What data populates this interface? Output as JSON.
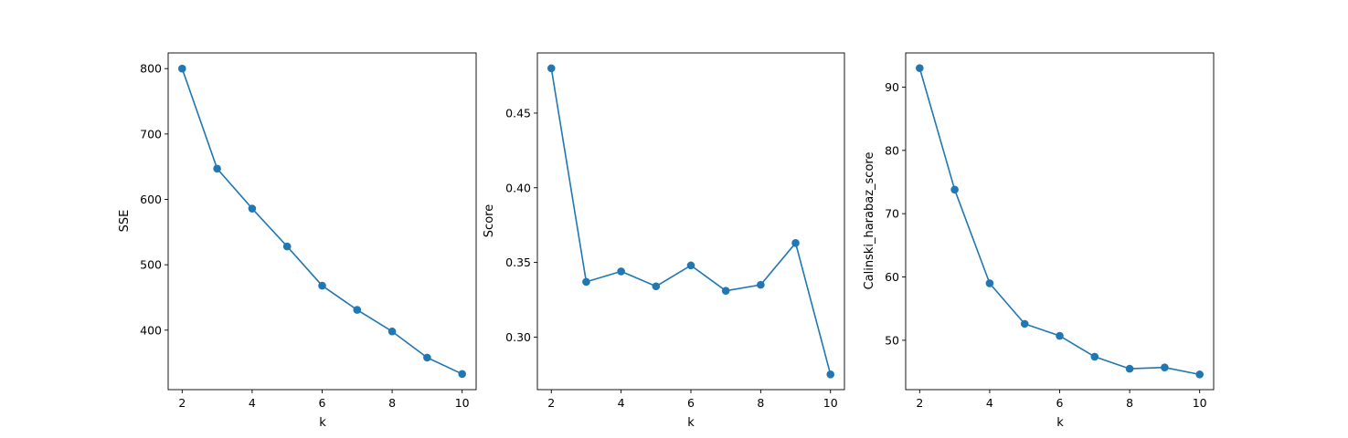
{
  "chart_data": [
    {
      "type": "line",
      "xlabel": "k",
      "ylabel": "SSE",
      "x": [
        2,
        3,
        4,
        5,
        6,
        7,
        8,
        9,
        10
      ],
      "series": [
        {
          "values": [
            800,
            647,
            586,
            528,
            468,
            431,
            398,
            358,
            333
          ]
        }
      ],
      "xlim": [
        1.6,
        10.4
      ],
      "ylim": [
        309,
        824
      ],
      "xticks": [
        2,
        4,
        6,
        8,
        10
      ],
      "yticks": [
        400,
        500,
        600,
        700,
        800
      ],
      "ytick_decimals": 0,
      "color": "#1f77b4",
      "grid": false,
      "marker": "circle"
    },
    {
      "type": "line",
      "xlabel": "k",
      "ylabel": "Score",
      "x": [
        2,
        3,
        4,
        5,
        6,
        7,
        8,
        9,
        10
      ],
      "series": [
        {
          "values": [
            0.48,
            0.337,
            0.344,
            0.334,
            0.348,
            0.331,
            0.335,
            0.363,
            0.275
          ]
        }
      ],
      "xlim": [
        1.6,
        10.4
      ],
      "ylim": [
        0.2648,
        0.4903
      ],
      "xticks": [
        2,
        4,
        6,
        8,
        10
      ],
      "yticks": [
        0.3,
        0.35,
        0.4,
        0.45
      ],
      "ytick_decimals": 2,
      "color": "#1f77b4",
      "grid": false,
      "marker": "circle"
    },
    {
      "type": "line",
      "xlabel": "k",
      "ylabel": "Calinski_harabaz_score",
      "x": [
        2,
        3,
        4,
        5,
        6,
        7,
        8,
        9,
        10
      ],
      "series": [
        {
          "values": [
            93.0,
            73.8,
            59.0,
            52.6,
            50.7,
            47.4,
            45.5,
            45.7,
            44.6
          ]
        }
      ],
      "xlim": [
        1.6,
        10.4
      ],
      "ylim": [
        42.2,
        95.4
      ],
      "xticks": [
        2,
        4,
        6,
        8,
        10
      ],
      "yticks": [
        50,
        60,
        70,
        80,
        90
      ],
      "ytick_decimals": 0,
      "color": "#1f77b4",
      "grid": false,
      "marker": "circle"
    }
  ]
}
